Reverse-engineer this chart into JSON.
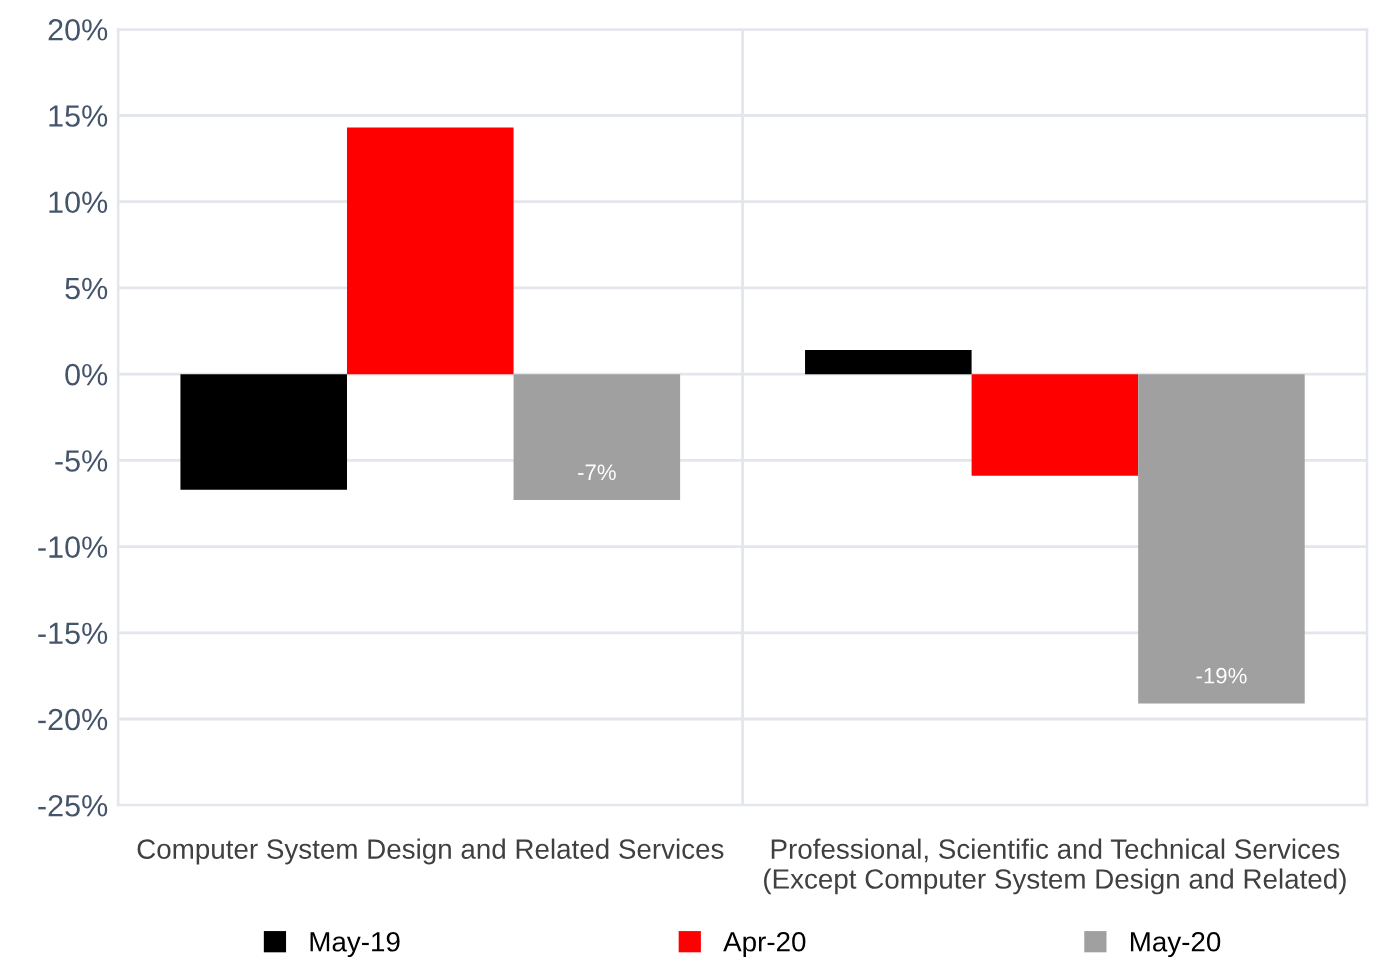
{
  "chart_data": {
    "type": "bar",
    "categories": [
      "Computer System Design and Related Services",
      "Professional, Scientific and Technical Services\n(Except Computer System Design and Related)"
    ],
    "series": [
      {
        "name": "May-19",
        "color": "#000000",
        "values": [
          -6.7,
          1.4
        ]
      },
      {
        "name": "Apr-20",
        "color": "#ff0000",
        "values": [
          14.3,
          -5.9
        ]
      },
      {
        "name": "May-20",
        "color": "#a0a0a0",
        "values": [
          -7.3,
          -19.1
        ],
        "value_labels": [
          "-7%",
          "-19%"
        ]
      }
    ],
    "ylim": [
      -25,
      20
    ],
    "yticks": [
      {
        "value": -25,
        "label": "-25%"
      },
      {
        "value": -20,
        "label": "-20%"
      },
      {
        "value": -15,
        "label": "-15%"
      },
      {
        "value": -10,
        "label": "-10%"
      },
      {
        "value": -5,
        "label": "-5%"
      },
      {
        "value": 0,
        "label": "0%"
      },
      {
        "value": 5,
        "label": "5%"
      },
      {
        "value": 10,
        "label": "10%"
      },
      {
        "value": 15,
        "label": "15%"
      },
      {
        "value": 20,
        "label": "20%"
      }
    ],
    "grid": true,
    "legend": "bottom"
  }
}
